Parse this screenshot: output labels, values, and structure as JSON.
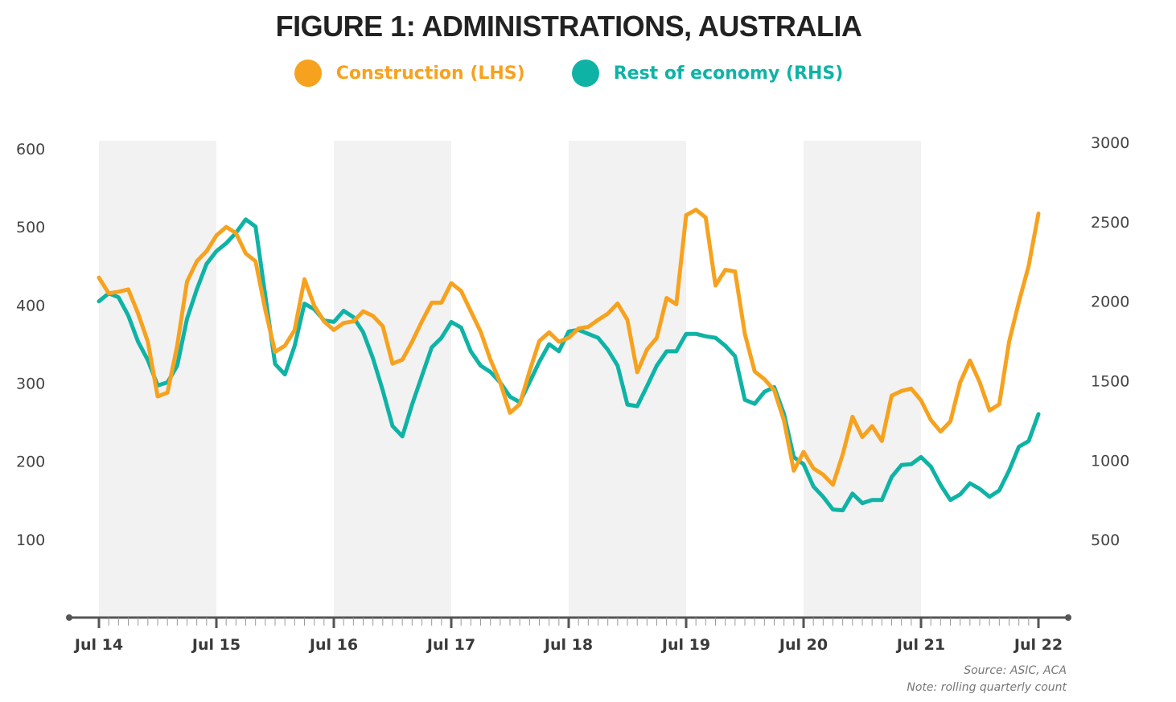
{
  "title": "FIGURE 1: ADMINISTRATIONS, AUSTRALIA",
  "legend": [
    {
      "label": "Construction (LHS)",
      "color": "#F7A21E"
    },
    {
      "label": "Rest of economy (RHS)",
      "color": "#0FB3A6"
    }
  ],
  "source": "Source: ASIC, ACA",
  "note": "Note: rolling quarterly count",
  "chart_data": {
    "type": "line",
    "title": "FIGURE 1: ADMINISTRATIONS, AUSTRALIA",
    "xlabel": "",
    "x_start": "Jul 14",
    "x_end": "Jul 22",
    "frequency": "monthly",
    "x_tick_labels": [
      "Jul 14",
      "Jul 15",
      "Jul 16",
      "Jul 17",
      "Jul 18",
      "Jul 19",
      "Jul 20",
      "Jul 21",
      "Jul 22"
    ],
    "left_axis": {
      "label": "Construction (LHS)",
      "ylim": [
        0,
        600
      ],
      "ticks": [
        100,
        200,
        300,
        400,
        500,
        600
      ]
    },
    "right_axis": {
      "label": "Rest of economy (RHS)",
      "ylim": [
        0,
        3000
      ],
      "ticks": [
        500,
        1000,
        1500,
        2000,
        2500,
        3000
      ]
    },
    "shaded_periods": [
      [
        "Jul 14",
        "Jul 15"
      ],
      [
        "Jul 16",
        "Jul 17"
      ],
      [
        "Jul 18",
        "Jul 19"
      ],
      [
        "Jul 20",
        "Jul 21"
      ]
    ],
    "grid": false,
    "legend_position": "top-center",
    "series": [
      {
        "name": "Construction (LHS)",
        "axis": "left",
        "color": "#F7A21E",
        "values": [
          435,
          415,
          417,
          420,
          389,
          353,
          283,
          288,
          348,
          430,
          456,
          469,
          489,
          500,
          492,
          466,
          456,
          394,
          340,
          348,
          368,
          433,
          399,
          379,
          368,
          377,
          379,
          392,
          386,
          373,
          325,
          330,
          353,
          379,
          403,
          403,
          428,
          418,
          392,
          366,
          330,
          301,
          262,
          273,
          315,
          354,
          365,
          353,
          358,
          370,
          372,
          381,
          389,
          402,
          381,
          314,
          343,
          358,
          409,
          401,
          515,
          522,
          512,
          425,
          445,
          443,
          363,
          315,
          305,
          291,
          252,
          188,
          212,
          191,
          183,
          170,
          209,
          257,
          231,
          245,
          226,
          284,
          290,
          293,
          278,
          253,
          238,
          251,
          301,
          329,
          301,
          265,
          273,
          353,
          404,
          450,
          517
        ]
      },
      {
        "name": "Rest of economy (RHS)",
        "axis": "right",
        "color": "#0FB3A6",
        "values": [
          2000,
          2050,
          2025,
          1910,
          1745,
          1630,
          1470,
          1490,
          1595,
          1890,
          2075,
          2235,
          2315,
          2365,
          2430,
          2515,
          2470,
          2035,
          1605,
          1540,
          1720,
          1985,
          1950,
          1880,
          1870,
          1940,
          1900,
          1805,
          1640,
          1440,
          1215,
          1150,
          1350,
          1530,
          1710,
          1770,
          1870,
          1835,
          1685,
          1595,
          1555,
          1490,
          1400,
          1365,
          1490,
          1620,
          1730,
          1685,
          1810,
          1820,
          1795,
          1770,
          1695,
          1595,
          1350,
          1340,
          1465,
          1595,
          1685,
          1685,
          1795,
          1795,
          1780,
          1770,
          1720,
          1655,
          1380,
          1355,
          1430,
          1460,
          1290,
          1020,
          975,
          835,
          770,
          690,
          685,
          790,
          730,
          750,
          750,
          895,
          970,
          975,
          1020,
          960,
          845,
          750,
          785,
          855,
          820,
          770,
          810,
          935,
          1085,
          1120,
          1290
        ]
      }
    ]
  }
}
